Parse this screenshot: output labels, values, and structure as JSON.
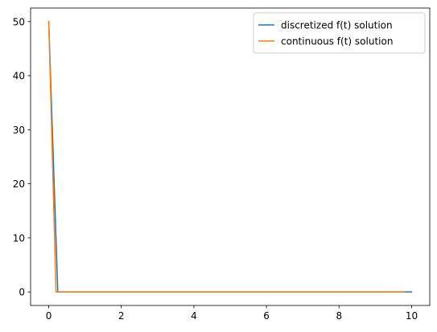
{
  "chart_data": {
    "type": "line",
    "title": "",
    "xlabel": "",
    "ylabel": "",
    "xlim": [
      -0.5,
      10.5
    ],
    "ylim": [
      -2.5,
      52.5
    ],
    "x_ticks": [
      0,
      2,
      4,
      6,
      8,
      10
    ],
    "y_ticks": [
      0,
      10,
      20,
      30,
      40,
      50
    ],
    "grid": false,
    "legend_position": "top-right",
    "series": [
      {
        "name": "discretized f(t) solution",
        "color": "#1f77b4",
        "x": [
          0,
          0.25,
          10
        ],
        "y": [
          50,
          0,
          0
        ]
      },
      {
        "name": "continuous f(t) solution",
        "color": "#ff7f0e",
        "x": [
          0,
          0.2,
          9.8
        ],
        "y": [
          50,
          0,
          0
        ]
      }
    ]
  }
}
